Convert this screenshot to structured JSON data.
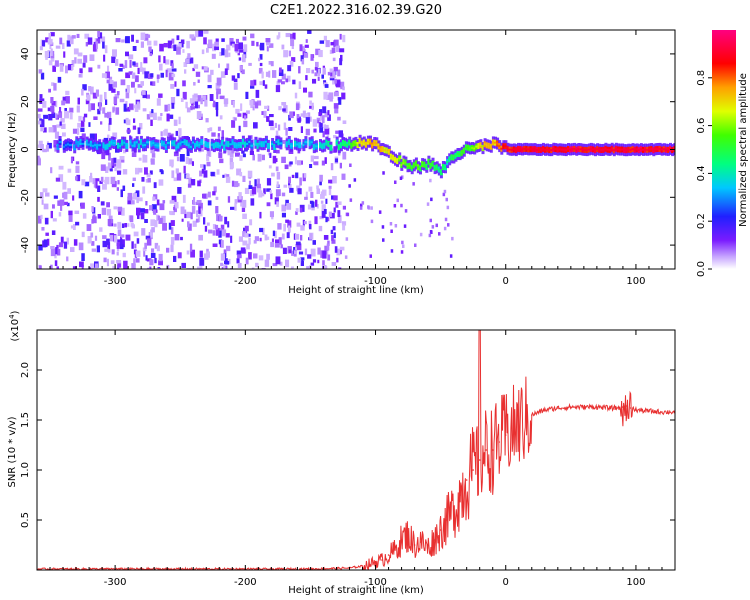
{
  "title": "C2E1.2022.316.02.39.G20",
  "chart_data": [
    {
      "type": "heatmap",
      "xlabel": "Height of straight line (km)",
      "ylabel": "Frequency (Hz)",
      "xlim": [
        -360,
        130
      ],
      "ylim": [
        -50,
        50
      ],
      "x_ticks": [
        -300,
        -200,
        -100,
        0,
        100
      ],
      "y_ticks": [
        -40,
        -20,
        0,
        20,
        40
      ],
      "colorbar": {
        "label": "Normalized spectral amplitude",
        "range": [
          0.0,
          1.0
        ],
        "ticks": [
          "0.0",
          "0.2",
          "0.4",
          "0.6",
          "0.8"
        ],
        "tick_values": [
          0.0,
          0.2,
          0.4,
          0.6,
          0.8
        ],
        "colormap": "rainbow (white-purple-blue-cyan-green-yellow-red-magenta)"
      },
      "ridge": {
        "description": "dominant frequency vs height",
        "x": [
          -340,
          -300,
          -250,
          -200,
          -150,
          -125,
          -110,
          -100,
          -90,
          -80,
          -70,
          -60,
          -50,
          -45,
          -40,
          -30,
          -20,
          -10,
          0,
          50,
          100,
          130
        ],
        "y": [
          2,
          2,
          2,
          2,
          2,
          2,
          3,
          2,
          -2,
          -6,
          -7,
          -6,
          -9,
          -5,
          -2,
          0,
          1,
          2,
          0,
          0,
          0,
          0
        ],
        "amplitude": [
          0.3,
          0.35,
          0.35,
          0.35,
          0.35,
          0.45,
          0.7,
          0.75,
          0.7,
          0.6,
          0.55,
          0.5,
          0.45,
          0.45,
          0.5,
          0.55,
          0.7,
          0.75,
          0.9,
          0.92,
          0.92,
          0.92
        ]
      },
      "noise_region": {
        "x_range": [
          -360,
          -125
        ],
        "note": "scattered low-amplitude noise across all frequencies"
      },
      "grid": false
    },
    {
      "type": "line",
      "xlabel": "Height of straight line (km)",
      "ylabel": "SNR (10 * v/v)",
      "y_multiplier": "(x10",
      "y_multiplier_exp": "4",
      "y_multiplier_close": ")",
      "xlim": [
        -360,
        130
      ],
      "ylim": [
        0,
        2.4
      ],
      "x_ticks": [
        -300,
        -200,
        -100,
        0,
        100
      ],
      "y_ticks": [
        0.5,
        1.0,
        1.5,
        2.0
      ],
      "y_tick_labels": [
        "0.5",
        "1.0",
        "1.5",
        "2.0"
      ],
      "series": [
        {
          "color": "#e83030",
          "x": [
            -360,
            -300,
            -250,
            -200,
            -150,
            -120,
            -110,
            -100,
            -95,
            -90,
            -85,
            -80,
            -75,
            -70,
            -65,
            -60,
            -55,
            -50,
            -45,
            -40,
            -35,
            -30,
            -25,
            -20,
            -15,
            -10,
            -5,
            0,
            10,
            20,
            30,
            40,
            50,
            60,
            70,
            80,
            85,
            90,
            93,
            96,
            100,
            110,
            120,
            130
          ],
          "y": [
            0.01,
            0.01,
            0.01,
            0.01,
            0.01,
            0.02,
            0.04,
            0.08,
            0.1,
            0.15,
            0.2,
            0.3,
            0.35,
            0.25,
            0.28,
            0.22,
            0.3,
            0.4,
            0.5,
            0.6,
            0.75,
            0.9,
            1.0,
            1.1,
            1.2,
            1.2,
            1.28,
            1.35,
            1.45,
            1.55,
            1.6,
            1.62,
            1.63,
            1.63,
            1.63,
            1.62,
            1.62,
            1.63,
            1.64,
            1.62,
            1.6,
            1.59,
            1.58,
            1.58
          ]
        }
      ],
      "grid": false
    }
  ]
}
